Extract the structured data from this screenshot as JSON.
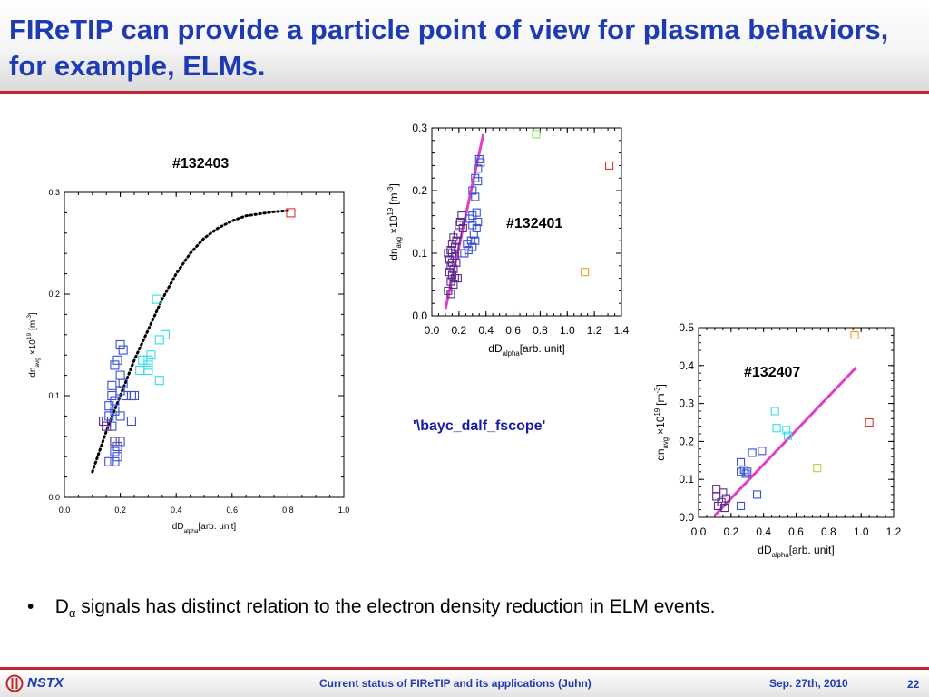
{
  "title": "FIReTIP can provide a particle point of view for plasma behaviors, for example, ELMs.",
  "labels": {
    "shot_132403": "#132403",
    "shot_132401": "#132401",
    "shot_132407": "#132407",
    "code": "'\\bayc_dalf_fscope'"
  },
  "bullet": {
    "marker": "•",
    "prefix": "D",
    "subscript": "α",
    "rest": " signals has distinct relation to the electron density reduction in ELM events."
  },
  "footer": {
    "logo": "NSTX",
    "center": "Current status of FIReTIP and its applications (Juhn)",
    "date": "Sep. 27th, 2010",
    "page": "22"
  },
  "colors": {
    "title": "#1f3bb3",
    "rule": "#c0282d",
    "fit_line": "#e040c8",
    "cyan": "#33dcea",
    "blue": "#3750d4",
    "purple": "#5a2a8c",
    "red": "#e23030",
    "orange": "#f0a020",
    "green": "#90e060",
    "yellowgreen": "#a8d838"
  },
  "chart_data": [
    {
      "type": "scatter",
      "title": "",
      "xlabel_main": "dD",
      "xlabel_sub": "alpha",
      "xlabel_unit": "[arb. unit]",
      "ylabel_main": "dn",
      "ylabel_sub": "avg",
      "ylabel_unit": "×10",
      "ylabel_exp": "19",
      "ylabel_bracket": "[m",
      "ylabel_bracket_exp": "-3",
      "ylabel_close": "]",
      "xlim": [
        0,
        1.0
      ],
      "ylim": [
        0,
        0.3
      ],
      "xticks": [
        "0.0",
        "0.2",
        "0.4",
        "0.6",
        "0.8",
        "1.0"
      ],
      "yticks": [
        "0.0",
        "0.1",
        "0.2",
        "0.3"
      ],
      "fit": {
        "style": "dotted",
        "color": "#000000",
        "points": [
          [
            0.1,
            0.025
          ],
          [
            0.15,
            0.065
          ],
          [
            0.2,
            0.1
          ],
          [
            0.25,
            0.135
          ],
          [
            0.3,
            0.165
          ],
          [
            0.35,
            0.195
          ],
          [
            0.4,
            0.22
          ],
          [
            0.45,
            0.24
          ],
          [
            0.5,
            0.255
          ],
          [
            0.55,
            0.265
          ],
          [
            0.6,
            0.272
          ],
          [
            0.65,
            0.277
          ],
          [
            0.7,
            0.279
          ],
          [
            0.75,
            0.281
          ],
          [
            0.8,
            0.282
          ]
        ]
      },
      "series": [
        {
          "color": "#3750d4",
          "points": [
            [
              0.2,
              0.15
            ],
            [
              0.21,
              0.145
            ],
            [
              0.19,
              0.135
            ],
            [
              0.18,
              0.13
            ],
            [
              0.2,
              0.12
            ],
            [
              0.21,
              0.112
            ],
            [
              0.17,
              0.11
            ],
            [
              0.2,
              0.105
            ],
            [
              0.24,
              0.1
            ],
            [
              0.25,
              0.1
            ],
            [
              0.22,
              0.1
            ],
            [
              0.17,
              0.1
            ],
            [
              0.18,
              0.095
            ],
            [
              0.16,
              0.09
            ],
            [
              0.18,
              0.085
            ],
            [
              0.2,
              0.08
            ],
            [
              0.16,
              0.08
            ],
            [
              0.15,
              0.075
            ],
            [
              0.24,
              0.075
            ],
            [
              0.17,
              0.07
            ],
            [
              0.2,
              0.055
            ],
            [
              0.19,
              0.05
            ],
            [
              0.18,
              0.045
            ],
            [
              0.19,
              0.04
            ],
            [
              0.16,
              0.035
            ],
            [
              0.18,
              0.035
            ]
          ]
        },
        {
          "color": "#5a2a8c",
          "points": [
            [
              0.14,
              0.075
            ],
            [
              0.15,
              0.07
            ],
            [
              0.18,
              0.055
            ]
          ]
        },
        {
          "color": "#33dcea",
          "points": [
            [
              0.33,
              0.195
            ],
            [
              0.36,
              0.16
            ],
            [
              0.34,
              0.155
            ],
            [
              0.31,
              0.14
            ],
            [
              0.3,
              0.13
            ],
            [
              0.28,
              0.135
            ],
            [
              0.3,
              0.125
            ],
            [
              0.27,
              0.125
            ],
            [
              0.34,
              0.115
            ],
            [
              0.3,
              0.135
            ]
          ]
        },
        {
          "color": "#e23030",
          "points": [
            [
              0.81,
              0.28
            ]
          ]
        }
      ]
    },
    {
      "type": "scatter",
      "title": "",
      "xlabel_main": "dD",
      "xlabel_sub": "alpha",
      "xlabel_unit": "[arb. unit]",
      "ylabel_main": "dn",
      "ylabel_sub": "avg",
      "ylabel_unit": "×10",
      "ylabel_exp": "19",
      "ylabel_bracket": "[m",
      "ylabel_bracket_exp": "-3",
      "ylabel_close": "]",
      "xlim": [
        0,
        1.4
      ],
      "ylim": [
        0,
        0.3
      ],
      "xticks": [
        "0.0",
        "0.2",
        "0.4",
        "0.6",
        "0.8",
        "1.0",
        "1.2",
        "1.4"
      ],
      "yticks": [
        "0.0",
        "0.1",
        "0.2",
        "0.3"
      ],
      "fit": {
        "style": "solid",
        "color": "#e040c8",
        "points": [
          [
            0.1,
            0.01
          ],
          [
            0.38,
            0.29
          ]
        ]
      },
      "series": [
        {
          "color": "#3750d4",
          "points": [
            [
              0.35,
              0.25
            ],
            [
              0.36,
              0.245
            ],
            [
              0.34,
              0.235
            ],
            [
              0.32,
              0.22
            ],
            [
              0.34,
              0.215
            ],
            [
              0.3,
              0.2
            ],
            [
              0.32,
              0.19
            ],
            [
              0.33,
              0.165
            ],
            [
              0.3,
              0.16
            ],
            [
              0.28,
              0.155
            ],
            [
              0.34,
              0.15
            ],
            [
              0.3,
              0.145
            ],
            [
              0.33,
              0.14
            ],
            [
              0.31,
              0.13
            ],
            [
              0.29,
              0.12
            ],
            [
              0.32,
              0.12
            ],
            [
              0.26,
              0.115
            ],
            [
              0.3,
              0.11
            ],
            [
              0.27,
              0.105
            ],
            [
              0.24,
              0.1
            ],
            [
              0.22,
              0.1
            ]
          ]
        },
        {
          "color": "#5a2a8c",
          "points": [
            [
              0.22,
              0.16
            ],
            [
              0.21,
              0.15
            ],
            [
              0.2,
              0.145
            ],
            [
              0.23,
              0.14
            ],
            [
              0.19,
              0.13
            ],
            [
              0.16,
              0.125
            ],
            [
              0.18,
              0.12
            ],
            [
              0.15,
              0.115
            ],
            [
              0.17,
              0.11
            ],
            [
              0.14,
              0.105
            ],
            [
              0.12,
              0.1
            ],
            [
              0.15,
              0.1
            ],
            [
              0.17,
              0.095
            ],
            [
              0.13,
              0.09
            ],
            [
              0.15,
              0.085
            ],
            [
              0.18,
              0.085
            ],
            [
              0.14,
              0.08
            ],
            [
              0.16,
              0.075
            ],
            [
              0.13,
              0.07
            ],
            [
              0.15,
              0.065
            ],
            [
              0.19,
              0.06
            ],
            [
              0.17,
              0.06
            ],
            [
              0.14,
              0.055
            ],
            [
              0.16,
              0.05
            ],
            [
              0.12,
              0.04
            ],
            [
              0.14,
              0.035
            ]
          ]
        },
        {
          "color": "#90e060",
          "points": [
            [
              0.77,
              0.29
            ]
          ]
        },
        {
          "color": "#e23030",
          "points": [
            [
              1.31,
              0.24
            ]
          ]
        },
        {
          "color": "#f0a020",
          "points": [
            [
              1.13,
              0.07
            ]
          ]
        }
      ]
    },
    {
      "type": "scatter",
      "title": "",
      "xlabel_main": "dD",
      "xlabel_sub": "alpha",
      "xlabel_unit": "[arb. unit]",
      "ylabel_main": "dn",
      "ylabel_sub": "avg",
      "ylabel_unit": "×10",
      "ylabel_exp": "19",
      "ylabel_bracket": "[m",
      "ylabel_bracket_exp": "-3",
      "ylabel_close": "]",
      "xlim": [
        0,
        1.2
      ],
      "ylim": [
        0,
        0.5
      ],
      "xticks": [
        "0.0",
        "0.2",
        "0.4",
        "0.6",
        "0.8",
        "1.0",
        "1.2"
      ],
      "yticks": [
        "0.0",
        "0.1",
        "0.2",
        "0.3",
        "0.4",
        "0.5"
      ],
      "fit": {
        "style": "solid",
        "color": "#e040c8",
        "points": [
          [
            0.1,
            0.005
          ],
          [
            0.97,
            0.395
          ]
        ]
      },
      "series": [
        {
          "color": "#3750d4",
          "points": [
            [
              0.33,
              0.17
            ],
            [
              0.39,
              0.175
            ],
            [
              0.26,
              0.145
            ],
            [
              0.28,
              0.125
            ],
            [
              0.26,
              0.12
            ],
            [
              0.3,
              0.12
            ],
            [
              0.29,
              0.115
            ],
            [
              0.36,
              0.06
            ],
            [
              0.26,
              0.03
            ]
          ]
        },
        {
          "color": "#5a2a8c",
          "points": [
            [
              0.11,
              0.075
            ],
            [
              0.15,
              0.065
            ],
            [
              0.11,
              0.055
            ],
            [
              0.17,
              0.05
            ],
            [
              0.14,
              0.04
            ],
            [
              0.12,
              0.03
            ],
            [
              0.16,
              0.025
            ]
          ]
        },
        {
          "color": "#33dcea",
          "points": [
            [
              0.47,
              0.28
            ],
            [
              0.48,
              0.235
            ],
            [
              0.54,
              0.23
            ],
            [
              0.55,
              0.215
            ]
          ]
        },
        {
          "color": "#a8d838",
          "points": [
            [
              0.73,
              0.13
            ]
          ]
        },
        {
          "color": "#e23030",
          "points": [
            [
              1.05,
              0.25
            ]
          ]
        },
        {
          "color": "#f0a020",
          "points": [
            [
              0.96,
              0.48
            ]
          ]
        }
      ]
    }
  ]
}
